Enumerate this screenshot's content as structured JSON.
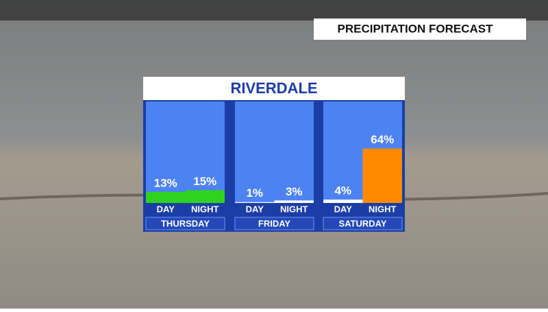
{
  "header": "PRECIPITATION FORECAST",
  "chart_data": {
    "type": "bar",
    "title": "RIVERDALE",
    "categories": [
      "THURSDAY",
      "FRIDAY",
      "SATURDAY"
    ],
    "series": [
      {
        "name": "DAY",
        "values": [
          13,
          1,
          4
        ],
        "value_labels": [
          "13%",
          "1%",
          "4%"
        ],
        "colors": [
          "#2fd31f",
          "#ffffff",
          "#ffffff"
        ]
      },
      {
        "name": "NIGHT",
        "values": [
          15,
          3,
          64
        ],
        "value_labels": [
          "15%",
          "3%",
          "64%"
        ],
        "colors": [
          "#2fd31f",
          "#ffffff",
          "#ff8a00"
        ]
      }
    ]
  }
}
